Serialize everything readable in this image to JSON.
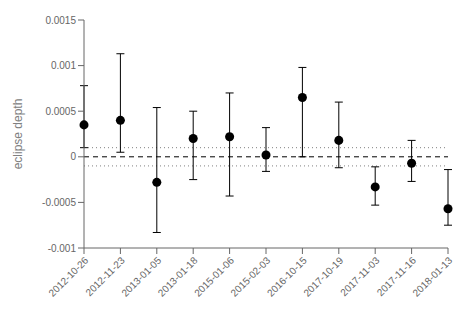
{
  "chart_data": {
    "type": "scatter",
    "ylabel": "eclipse depth",
    "categories": [
      "2012-10-26",
      "2012-11-23",
      "2013-01-05",
      "2013-01-18",
      "2015-01-06",
      "2015-02-03",
      "2016-10-15",
      "2017-10-19",
      "2017-11-03",
      "2017-11-16",
      "2018-01-13"
    ],
    "values": [
      0.00035,
      0.0004,
      -0.00028,
      0.0002,
      0.00022,
      2e-05,
      0.00065,
      0.00018,
      -0.00033,
      -7e-05,
      -0.00057
    ],
    "yerr_lower": [
      0.00025,
      0.00035,
      0.00055,
      0.00045,
      0.00065,
      0.00018,
      0.00065,
      0.0003,
      0.0002,
      0.0002,
      0.00018
    ],
    "yerr_upper": [
      0.00043,
      0.00073,
      0.00082,
      0.0003,
      0.00048,
      0.0003,
      0.00033,
      0.00042,
      0.00022,
      0.00025,
      0.00043
    ],
    "color": "black",
    "marker": "circle",
    "ylim": [
      -0.001,
      0.0015
    ],
    "yticks": [
      -0.001,
      -0.0005,
      0,
      0.0005,
      0.001,
      0.0015
    ],
    "reference_lines": [
      {
        "value": 0.0,
        "line_style": "dashed",
        "color": "black"
      },
      {
        "value": 0.0001,
        "line_style": "dotted",
        "color": "gray"
      },
      {
        "value": -0.0001,
        "line_style": "dotted",
        "color": "gray"
      }
    ],
    "grid": false
  }
}
